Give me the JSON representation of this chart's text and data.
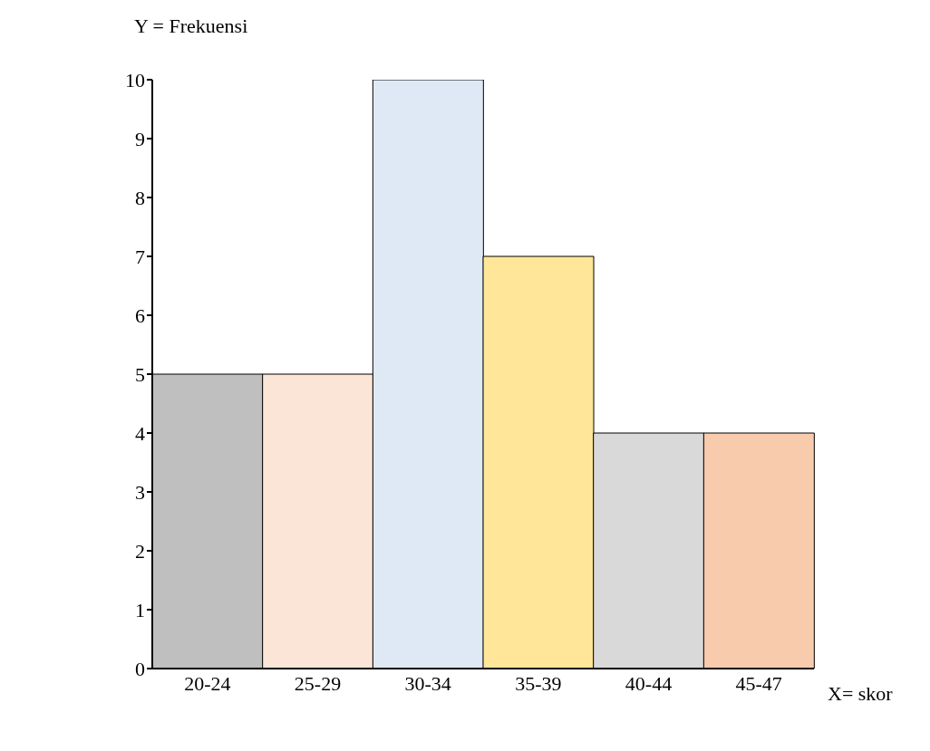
{
  "chart_data": {
    "type": "bar",
    "ylabel": "Y = Frekuensi",
    "xlabel": "X= skor",
    "categories": [
      "20-24",
      "25-29",
      "30-34",
      "35-39",
      "40-44",
      "45-47"
    ],
    "values": [
      5,
      5,
      10,
      7,
      4,
      4
    ],
    "colors": [
      "#bfbfbf",
      "#fbe5d6",
      "#dee9f5",
      "#ffe699",
      "#d9d9d9",
      "#f8cbad"
    ],
    "ylim": [
      0,
      10
    ],
    "yticks": [
      0,
      1,
      2,
      3,
      4,
      5,
      6,
      7,
      8,
      9,
      10
    ],
    "grid": false,
    "legend": false
  }
}
